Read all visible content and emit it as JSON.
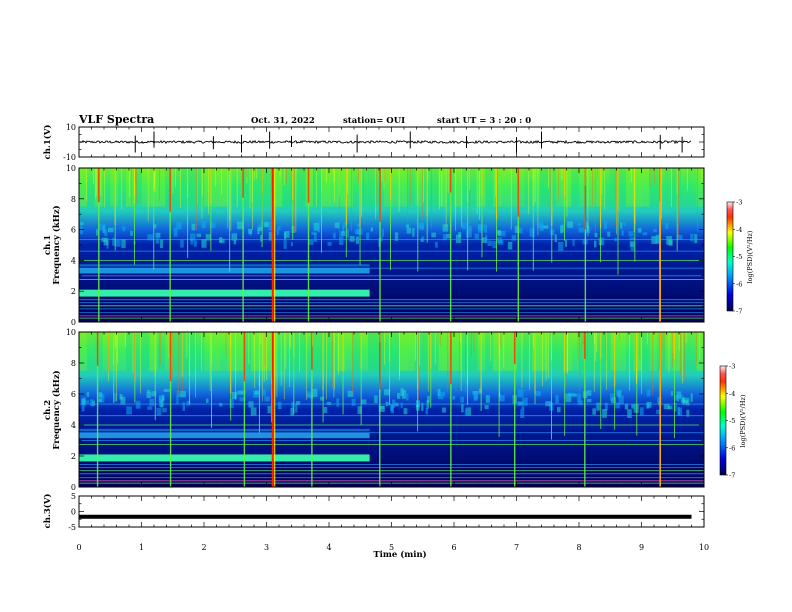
{
  "header": {
    "title": "VLF Spectra",
    "date": "Oct. 31, 2022",
    "station": "station= OUI",
    "start_ut": "start UT =  3 : 20 : 0"
  },
  "colors": {
    "background": "#ffffff",
    "frame": "#000000",
    "spectrum_low": "#000066",
    "spectrum_high": "#ff0000",
    "line_band": "#33ffcc"
  },
  "chart_data": [
    {
      "id": "ch1-waveform",
      "type": "line",
      "ylabel": "ch.1(V)",
      "ylim": [
        -10,
        10
      ],
      "yticks": [
        10,
        -10
      ],
      "xlim": [
        0,
        10
      ],
      "series": [
        {
          "x": [
            0,
            1.2,
            2.1,
            3.1,
            4.6,
            6.0,
            7.5,
            9.0,
            9.8
          ],
          "y": [
            0,
            0.3,
            -0.4,
            0.2,
            0.1,
            -0.2,
            0.3,
            0.0,
            0.1
          ]
        }
      ],
      "spikes_x": [
        0.9,
        1.2,
        2.15,
        2.6,
        3.05,
        3.4,
        4.45,
        5.3,
        6.2,
        7.0,
        7.4,
        9.3,
        9.65
      ]
    },
    {
      "id": "ch1-spectrogram",
      "type": "heatmap",
      "ylabel": "ch.1",
      "ylabel2": "Frequency (kHz)",
      "ylim": [
        0,
        10
      ],
      "yticks": [
        0,
        2,
        4,
        6,
        8,
        10
      ],
      "xlim": [
        0,
        10
      ],
      "colorbar": {
        "label": "log(PSD)(V²/Hz)",
        "range": [
          -7,
          -3
        ],
        "ticks": [
          -3,
          -4,
          -5,
          -6,
          -7
        ]
      },
      "band_1_8khz_end_min": 4.65,
      "band_3_3khz_end_min": 4.65,
      "noise_top_khz": 5.6,
      "spheric_times_min": [
        0.3,
        0.55,
        0.9,
        1.2,
        1.45,
        1.75,
        2.1,
        2.4,
        2.65,
        2.9,
        3.1,
        3.45,
        3.7,
        3.9,
        4.25,
        4.5,
        4.8,
        5.0,
        5.4,
        5.6,
        5.95,
        6.2,
        6.45,
        6.7,
        7.0,
        7.3,
        7.55,
        7.8,
        8.1,
        8.35,
        8.6,
        8.9,
        9.3,
        9.55
      ]
    },
    {
      "id": "ch2-spectrogram",
      "type": "heatmap",
      "ylabel": "ch.2",
      "ylabel2": "Frequency (kHz)",
      "ylim": [
        0,
        10
      ],
      "yticks": [
        0,
        2,
        4,
        6,
        8,
        10
      ],
      "xlim": [
        0,
        10
      ],
      "colorbar": {
        "label": "log(PSD)(V²/Hz)",
        "range": [
          -7,
          -3
        ],
        "ticks": [
          -3,
          -4,
          -5,
          -6,
          -7
        ]
      },
      "band_1_8khz_end_min": 4.65,
      "band_3_3khz_end_min": 4.65,
      "noise_top_khz": 5.4,
      "spheric_times_min": [
        0.3,
        0.55,
        0.9,
        1.2,
        1.45,
        1.75,
        2.1,
        2.4,
        2.65,
        2.9,
        3.1,
        3.45,
        3.7,
        3.9,
        4.25,
        4.5,
        4.8,
        5.0,
        5.4,
        5.6,
        5.95,
        6.2,
        6.45,
        6.7,
        7.0,
        7.3,
        7.55,
        7.8,
        8.1,
        8.35,
        8.6,
        8.9,
        9.3,
        9.55
      ]
    },
    {
      "id": "ch3-waveform",
      "type": "line",
      "ylabel": "ch.3(V)",
      "ylim": [
        -5,
        5
      ],
      "yticks": [
        5,
        0,
        -5
      ],
      "xlim": [
        0,
        10
      ],
      "xlabel": "Time (min)",
      "xticks": [
        0,
        1,
        2,
        3,
        4,
        5,
        6,
        7,
        8,
        9,
        10
      ],
      "series": [
        {
          "x": [
            0,
            9.8
          ],
          "y": [
            -1.7,
            -1.7
          ]
        }
      ]
    }
  ]
}
